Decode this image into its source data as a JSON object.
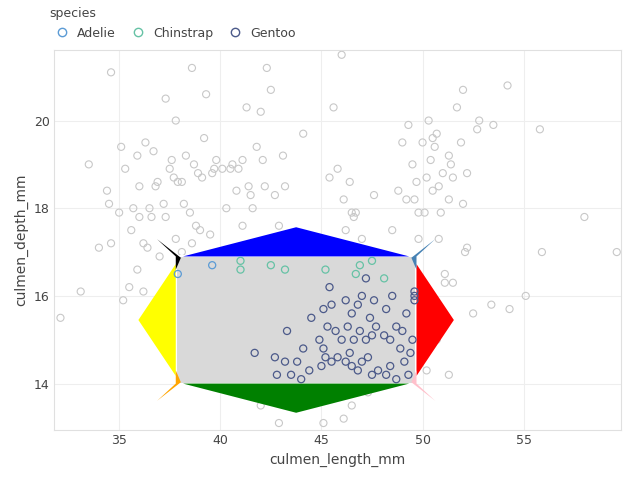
{
  "chart_data": {
    "type": "scatter",
    "x_label": "culmen_length_mm",
    "y_label": "culmen_depth_mm",
    "legend_title": "species",
    "xlim": [
      31.8,
      59.8
    ],
    "xticks": [
      35,
      40,
      45,
      50,
      55
    ],
    "ylim": [
      12.95,
      21.6
    ],
    "yticks": [
      14,
      16,
      18,
      20
    ],
    "grid": true,
    "legend": "top left",
    "marker": "circle",
    "selection": {
      "x": [
        37.8,
        49.7
      ],
      "y": [
        14.0,
        16.9
      ]
    },
    "unselected": {
      "color": "#c8c8c8",
      "x": [
        32.1,
        33.1,
        33.5,
        34.0,
        34.4,
        34.5,
        34.6,
        34.6,
        35.0,
        35.1,
        35.2,
        35.3,
        35.5,
        35.6,
        35.7,
        35.9,
        35.9,
        36.0,
        36.0,
        36.2,
        36.2,
        36.3,
        36.4,
        36.5,
        36.6,
        36.7,
        36.8,
        36.9,
        37.0,
        37.2,
        37.3,
        37.3,
        37.5,
        37.6,
        37.7,
        37.8,
        37.8,
        37.9,
        38.1,
        38.1,
        38.2,
        38.3,
        38.5,
        38.6,
        38.6,
        38.7,
        38.8,
        38.9,
        39.0,
        39.1,
        39.2,
        39.3,
        39.5,
        39.6,
        39.7,
        39.8,
        40.1,
        40.2,
        40.3,
        40.5,
        40.6,
        40.7,
        40.8,
        40.9,
        41.1,
        41.1,
        41.3,
        41.4,
        41.5,
        41.6,
        41.8,
        42.0,
        42.1,
        42.2,
        42.3,
        42.5,
        42.7,
        42.9,
        43.1,
        43.2,
        44.1,
        45.4,
        45.6,
        45.8,
        46.0,
        46.1,
        46.4,
        46.5,
        46.7,
        47.0,
        49.0,
        49.2,
        49.5,
        49.6,
        49.7,
        49.8,
        49.8,
        50.0,
        50.1,
        50.2,
        50.3,
        50.4,
        50.5,
        50.5,
        50.6,
        50.7,
        50.8,
        50.9,
        51.0,
        51.3,
        51.3,
        51.4,
        51.5,
        51.7,
        51.9,
        52.0,
        52.0,
        52.2,
        52.7,
        52.8,
        53.5,
        54.2,
        55.8,
        58.0,
        45.5,
        46.2,
        46.6,
        47.6,
        48.5,
        48.8,
        49.3,
        49.9,
        50.0,
        50.1,
        50.4,
        50.5,
        50.7,
        50.8,
        51.1,
        51.1,
        51.3,
        51.5,
        52.1,
        52.2,
        52.5,
        53.4,
        54.3,
        55.1,
        55.9,
        59.6,
        50.2,
        50.4,
        50.8,
        50.0,
        44.4,
        45.1,
        42.9,
        43.4,
        46.1,
        45.5,
        46.1,
        44.9,
        47.3,
        46.5,
        45.3,
        42.0,
        44.0,
        37.7
      ],
      "y": [
        15.5,
        16.1,
        19.0,
        17.1,
        18.4,
        18.1,
        21.1,
        17.2,
        17.9,
        19.4,
        15.9,
        18.9,
        16.2,
        17.5,
        18.0,
        19.2,
        16.6,
        18.5,
        17.8,
        16.1,
        17.2,
        19.5,
        17.1,
        18.0,
        17.8,
        19.3,
        18.5,
        18.6,
        16.9,
        18.1,
        20.5,
        17.8,
        18.9,
        19.1,
        18.7,
        17.3,
        20.0,
        18.6,
        18.6,
        17.0,
        18.1,
        19.2,
        17.9,
        21.2,
        17.2,
        19.0,
        17.6,
        18.8,
        17.5,
        18.7,
        19.6,
        20.6,
        17.4,
        18.8,
        18.9,
        19.1,
        18.9,
        17.0,
        18.0,
        18.9,
        19.0,
        17.0,
        18.4,
        18.9,
        17.6,
        19.1,
        20.3,
        18.5,
        18.3,
        18.0,
        19.4,
        20.2,
        19.1,
        18.5,
        21.2,
        20.7,
        18.3,
        17.6,
        19.2,
        18.5,
        19.7,
        18.7,
        20.3,
        18.9,
        21.5,
        18.2,
        18.6,
        17.9,
        17.9,
        17.3,
        19.5,
        18.2,
        19.0,
        18.2,
        18.6,
        17.3,
        17.9,
        19.5,
        17.9,
        18.7,
        20.0,
        19.1,
        18.4,
        19.6,
        19.4,
        19.7,
        18.5,
        17.9,
        18.8,
        19.2,
        18.2,
        19.0,
        18.7,
        20.3,
        19.5,
        18.1,
        20.7,
        18.8,
        19.8,
        20.0,
        19.9,
        20.8,
        19.8,
        17.8,
        17.0,
        17.5,
        17.8,
        18.3,
        17.5,
        18.4,
        19.9,
        16.1,
        15.2,
        15.0,
        15.7,
        15.9,
        15.0,
        15.7,
        16.5,
        16.3,
        14.2,
        16.3,
        17.0,
        17.1,
        15.6,
        15.8,
        15.7,
        16.0,
        17.0,
        17.0,
        14.3,
        15.3,
        17.3,
        15.9,
        13.7,
        13.1,
        13.1,
        13.7,
        13.2,
        13.7,
        13.9,
        13.8,
        13.8,
        13.5,
        13.7,
        13.5,
        13.6,
        16.0
      ]
    },
    "series": [
      {
        "name": "Adelie",
        "color": "#5b9bd5",
        "x": [
          37.9,
          39.6
        ],
        "y": [
          16.5,
          16.7
        ]
      },
      {
        "name": "Chinstrap",
        "color": "#66c2a5",
        "x": [
          41.0,
          41.0,
          42.5,
          43.2,
          45.2,
          46.7,
          46.9,
          47.5,
          48.1
        ],
        "y": [
          16.6,
          16.8,
          16.7,
          16.6,
          16.6,
          16.5,
          16.7,
          16.8,
          16.4
        ]
      },
      {
        "name": "Gentoo",
        "color": "#4c5a8a",
        "x": [
          43.3,
          44.0,
          44.4,
          45.0,
          45.2,
          45.5,
          45.8,
          46.2,
          46.4,
          46.5,
          46.8,
          47.0,
          47.3,
          47.5,
          47.8,
          48.2,
          48.4,
          48.7,
          49.1,
          49.3,
          44.9,
          45.3,
          45.7,
          46.0,
          46.3,
          46.6,
          46.9,
          47.2,
          47.5,
          47.7,
          48.1,
          48.4,
          48.7,
          49.0,
          49.5,
          45.1,
          45.5,
          46.2,
          46.5,
          46.8,
          47.0,
          47.4,
          47.6,
          48.2,
          48.5,
          49.2,
          49.6,
          49.6,
          49.6,
          43.5,
          42.7,
          41.7,
          43.2,
          44.1,
          44.5,
          42.8,
          43.8,
          45.1,
          48.9,
          49.4,
          45.4,
          47.2
        ],
        "y": [
          15.2,
          14.1,
          14.3,
          14.4,
          14.6,
          14.5,
          14.6,
          14.5,
          14.7,
          14.4,
          14.3,
          14.5,
          14.6,
          14.2,
          14.3,
          14.2,
          14.4,
          14.1,
          14.5,
          14.2,
          15.0,
          15.3,
          15.2,
          15.0,
          15.3,
          15.0,
          15.2,
          15.0,
          15.1,
          15.3,
          15.1,
          15.0,
          15.3,
          15.2,
          15.0,
          15.7,
          15.8,
          15.9,
          15.6,
          15.8,
          16.0,
          15.5,
          15.9,
          15.7,
          16.0,
          15.6,
          16.1,
          15.9,
          16.0,
          14.2,
          14.6,
          14.7,
          14.5,
          14.8,
          15.5,
          14.2,
          14.5,
          14.8,
          14.8,
          14.7,
          16.2,
          16.4
        ]
      }
    ]
  }
}
